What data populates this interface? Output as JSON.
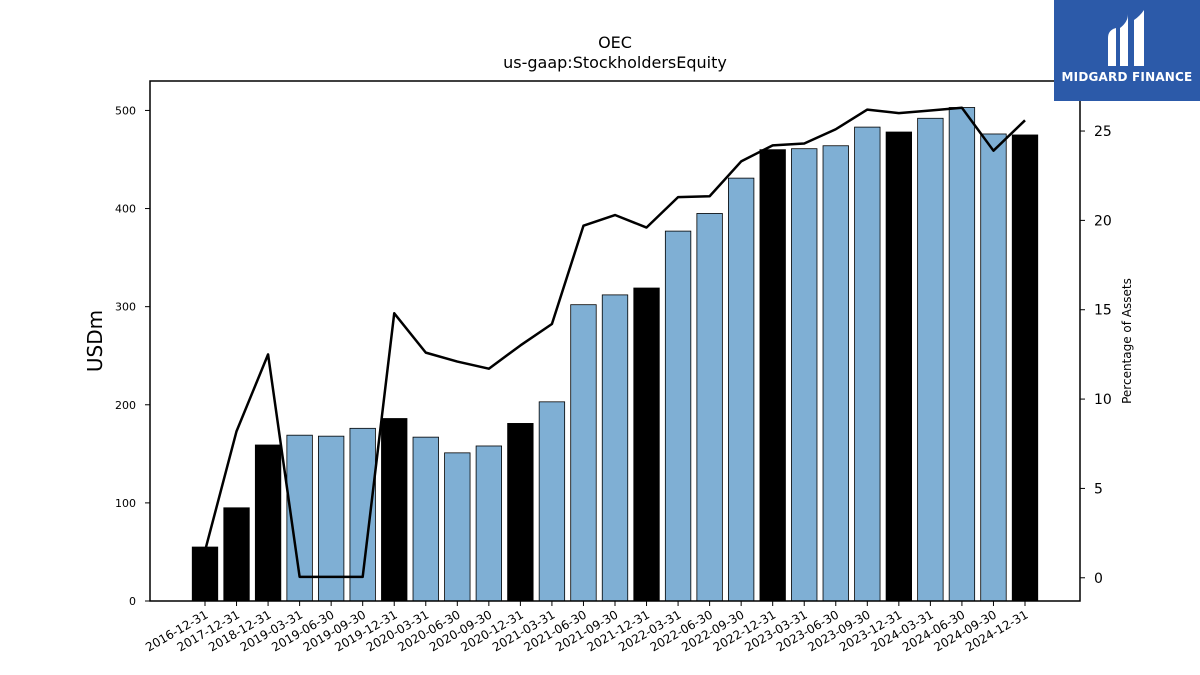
{
  "brand": {
    "name": "MIDGARD FINANCE",
    "color": "#2c5aa9"
  },
  "chart_data": {
    "type": "bar",
    "title": "OEC",
    "subtitle": "us-gaap:StockholdersEquity",
    "ylabel": "USDm",
    "y2label": "Percentage of Assets",
    "ylim": [
      0,
      530
    ],
    "y2lim": [
      -1.3,
      27.8
    ],
    "yticks": [
      0,
      100,
      200,
      300,
      400,
      500
    ],
    "y2ticks": [
      0,
      5,
      10,
      15,
      20,
      25
    ],
    "grid": false,
    "colors": {
      "annual_bar": "#000000",
      "quarterly_bar": "#7fafd4",
      "line": "#000000"
    },
    "categories": [
      "2016-12-31",
      "2017-12-31",
      "2018-12-31",
      "2019-03-31",
      "2019-06-30",
      "2019-09-30",
      "2019-12-31",
      "2020-03-31",
      "2020-06-30",
      "2020-09-30",
      "2020-12-31",
      "2021-03-31",
      "2021-06-30",
      "2021-09-30",
      "2021-12-31",
      "2022-03-31",
      "2022-06-30",
      "2022-09-30",
      "2022-12-31",
      "2023-03-31",
      "2023-06-30",
      "2023-09-30",
      "2023-12-31",
      "2024-03-31",
      "2024-06-30",
      "2024-09-30",
      "2024-12-31"
    ],
    "series": [
      {
        "type": "bar",
        "values": [
          55,
          95,
          159,
          169,
          168,
          176,
          186,
          167,
          151,
          158,
          181,
          203,
          302,
          312,
          319,
          377,
          395,
          431,
          460,
          461,
          464,
          483,
          478,
          492,
          503,
          476,
          475
        ],
        "annual": [
          true,
          true,
          true,
          false,
          false,
          false,
          true,
          false,
          false,
          false,
          true,
          false,
          false,
          false,
          true,
          false,
          false,
          false,
          true,
          false,
          false,
          false,
          true,
          false,
          false,
          false,
          true
        ]
      },
      {
        "type": "line",
        "axis": "right",
        "values": [
          1.5,
          8.2,
          12.5,
          0.05,
          0.05,
          0.05,
          14.8,
          12.6,
          12.1,
          11.7,
          13.0,
          14.2,
          19.7,
          20.3,
          19.6,
          21.3,
          21.35,
          23.3,
          24.2,
          24.3,
          25.1,
          26.2,
          26.0,
          26.15,
          26.3,
          23.9,
          25.6
        ]
      }
    ]
  }
}
